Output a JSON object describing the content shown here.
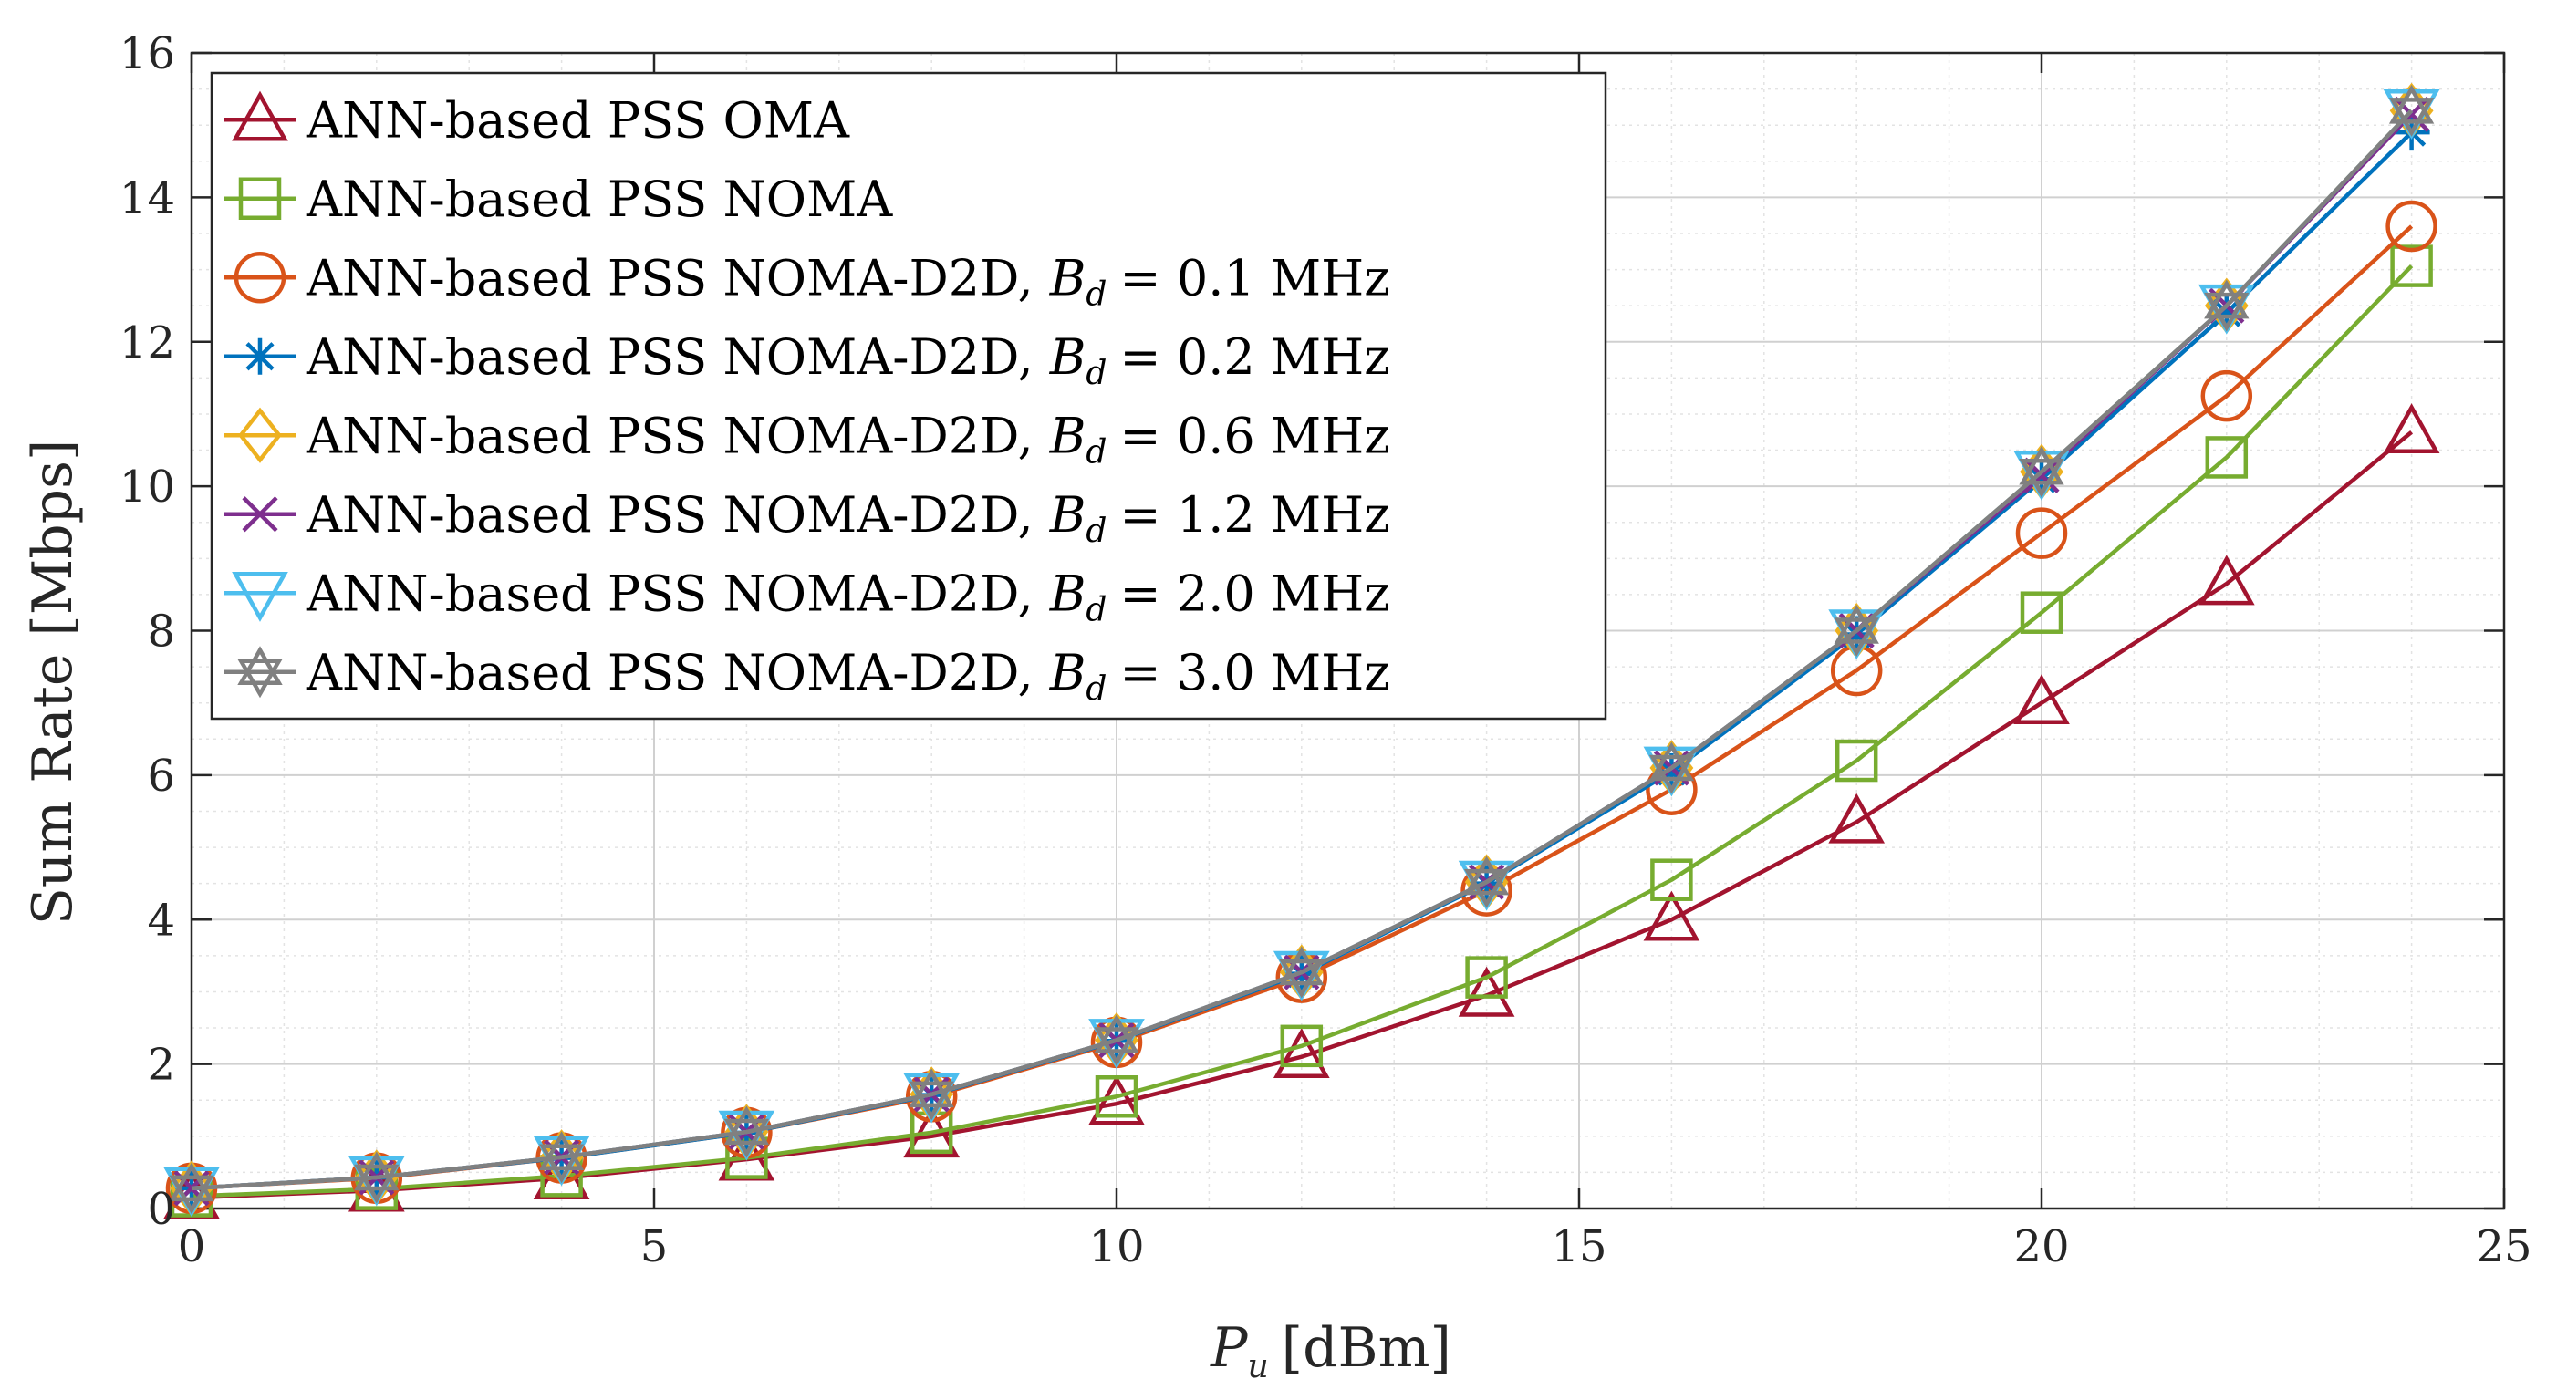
{
  "chart_data": {
    "type": "line",
    "xlabel_var": "P",
    "xlabel_sub": "u",
    "xlabel_unit": "[dBm]",
    "ylabel": "Sum Rate [Mbps]",
    "xlim": [
      0,
      25
    ],
    "ylim": [
      0,
      16
    ],
    "xticks": [
      0,
      5,
      10,
      15,
      20,
      25
    ],
    "yticks": [
      0,
      2,
      4,
      6,
      8,
      10,
      12,
      14,
      16
    ],
    "grid": true,
    "legend_position": "top-left",
    "x": [
      0,
      2,
      4,
      6,
      8,
      10,
      12,
      14,
      16,
      18,
      20,
      22,
      24
    ],
    "series": [
      {
        "name": "ANN-based PSS OMA",
        "label_main": "ANN-based PSS OMA",
        "marker": "triangle-up",
        "color": "#A2142F",
        "values": [
          0.15,
          0.25,
          0.42,
          0.68,
          1.0,
          1.45,
          2.1,
          2.95,
          4.0,
          5.35,
          7.0,
          8.65,
          10.75
        ]
      },
      {
        "name": "ANN-based PSS NOMA",
        "label_main": "ANN-based PSS NOMA",
        "marker": "square",
        "color": "#77AC30",
        "values": [
          0.17,
          0.27,
          0.45,
          0.7,
          1.05,
          1.55,
          2.25,
          3.2,
          4.55,
          6.2,
          8.25,
          10.4,
          13.05
        ]
      },
      {
        "name": "ANN-based PSS NOMA-D2D, B_d = 0.1 MHz",
        "label_main": "ANN-based PSS NOMA-D2D,",
        "bd_var": "B",
        "bd_sub": "d",
        "bd_value": "= 0.1 MHz",
        "marker": "circle",
        "color": "#D95319",
        "values": [
          0.28,
          0.42,
          0.7,
          1.05,
          1.55,
          2.3,
          3.2,
          4.4,
          5.8,
          7.45,
          9.35,
          11.25,
          13.6
        ]
      },
      {
        "name": "ANN-based PSS NOMA-D2D, B_d = 0.2 MHz",
        "label_main": "ANN-based PSS NOMA-D2D,",
        "bd_var": "B",
        "bd_sub": "d",
        "bd_value": "= 0.2 MHz",
        "marker": "asterisk",
        "color": "#0072BD",
        "values": [
          0.28,
          0.43,
          0.7,
          1.05,
          1.57,
          2.32,
          3.25,
          4.5,
          6.05,
          7.95,
          10.1,
          12.4,
          14.9
        ]
      },
      {
        "name": "ANN-based PSS NOMA-D2D, B_d = 0.6 MHz",
        "label_main": "ANN-based PSS NOMA-D2D,",
        "bd_var": "B",
        "bd_sub": "d",
        "bd_value": "= 0.6 MHz",
        "marker": "diamond",
        "color": "#EDB120",
        "values": [
          0.28,
          0.43,
          0.71,
          1.06,
          1.58,
          2.33,
          3.27,
          4.52,
          6.1,
          8.0,
          10.2,
          12.5,
          15.2
        ]
      },
      {
        "name": "ANN-based PSS NOMA-D2D, B_d = 1.2 MHz",
        "label_main": "ANN-based PSS NOMA-D2D,",
        "bd_var": "B",
        "bd_sub": "d",
        "bd_value": "= 1.2 MHz",
        "marker": "cross",
        "color": "#7E2F8E",
        "values": [
          0.28,
          0.43,
          0.71,
          1.06,
          1.58,
          2.33,
          3.27,
          4.52,
          6.1,
          8.0,
          10.15,
          12.5,
          15.15
        ]
      },
      {
        "name": "ANN-based PSS NOMA-D2D, B_d = 2.0 MHz",
        "label_main": "ANN-based PSS NOMA-D2D,",
        "bd_var": "B",
        "bd_sub": "d",
        "bd_value": "= 2.0 MHz",
        "marker": "triangle-down",
        "color": "#4DBEEE",
        "values": [
          0.28,
          0.43,
          0.71,
          1.06,
          1.58,
          2.33,
          3.27,
          4.52,
          6.1,
          8.0,
          10.2,
          12.5,
          15.2
        ]
      },
      {
        "name": "ANN-based PSS NOMA-D2D, B_d = 3.0 MHz",
        "label_main": "ANN-based PSS NOMA-D2D,",
        "bd_var": "B",
        "bd_sub": "d",
        "bd_value": "= 3.0 MHz",
        "marker": "hexagram",
        "color": "#808080",
        "values": [
          0.28,
          0.43,
          0.71,
          1.06,
          1.58,
          2.33,
          3.27,
          4.52,
          6.1,
          8.0,
          10.2,
          12.5,
          15.2
        ]
      }
    ]
  }
}
